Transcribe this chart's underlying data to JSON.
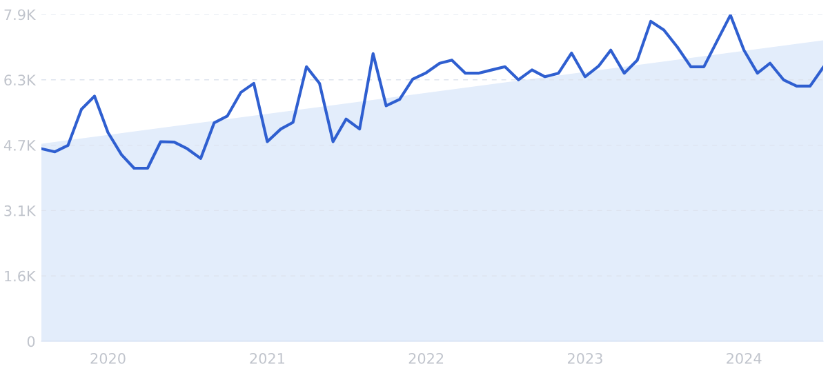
{
  "chart_data": {
    "type": "line",
    "x": [
      "2019-08",
      "2019-09",
      "2019-10",
      "2019-11",
      "2019-12",
      "2020-01",
      "2020-02",
      "2020-03",
      "2020-04",
      "2020-05",
      "2020-06",
      "2020-07",
      "2020-08",
      "2020-09",
      "2020-10",
      "2020-11",
      "2020-12",
      "2021-01",
      "2021-02",
      "2021-03",
      "2021-04",
      "2021-05",
      "2021-06",
      "2021-07",
      "2021-08",
      "2021-09",
      "2021-10",
      "2021-11",
      "2021-12",
      "2022-01",
      "2022-02",
      "2022-03",
      "2022-04",
      "2022-05",
      "2022-06",
      "2022-07",
      "2022-08",
      "2022-09",
      "2022-10",
      "2022-11",
      "2022-12",
      "2023-01",
      "2023-02",
      "2023-03",
      "2023-04",
      "2023-05",
      "2023-06",
      "2023-07",
      "2023-08",
      "2023-09",
      "2023-10",
      "2023-11",
      "2023-12",
      "2024-01",
      "2024-02",
      "2024-03",
      "2024-04",
      "2024-05",
      "2024-06",
      "2024-07"
    ],
    "series": [
      {
        "type": "area",
        "color": "#e3edfb",
        "x": [
          "2019-08",
          "2024-07"
        ],
        "values": [
          4760,
          7250
        ]
      },
      {
        "color": "#2f5fd0",
        "values": [
          4640,
          4565,
          4720,
          5590,
          5905,
          5030,
          4495,
          4170,
          4170,
          4810,
          4800,
          4640,
          4405,
          5265,
          5425,
          5995,
          6215,
          4810,
          5115,
          5275,
          6615,
          6215,
          4810,
          5355,
          5115,
          6930,
          5675,
          5830,
          6315,
          6470,
          6700,
          6775,
          6460,
          6460,
          6540,
          6615,
          6300,
          6540,
          6375,
          6460,
          6945,
          6375,
          6630,
          7015,
          6460,
          6775,
          7710,
          7500,
          7090,
          6615,
          6615,
          7250,
          7860,
          7015,
          6460,
          6700,
          6300,
          6150,
          6150,
          6600
        ]
      }
    ],
    "xlim": [
      "2019-08",
      "2024-07"
    ],
    "xticks": [
      {
        "value": "2020-01",
        "label": "2020"
      },
      {
        "value": "2021-01",
        "label": "2021"
      },
      {
        "value": "2022-01",
        "label": "2022"
      },
      {
        "value": "2023-01",
        "label": "2023"
      },
      {
        "value": "2024-01",
        "label": "2024"
      }
    ],
    "ylim": [
      0,
      7875
    ],
    "yticks": [
      0,
      {
        "value": 1575,
        "label": "1.6K"
      },
      {
        "value": 3150,
        "label": "3.1K"
      },
      {
        "value": 4725,
        "label": "4.7K"
      },
      {
        "value": 6300,
        "label": "6.3K"
      },
      {
        "value": 7875,
        "label": "7.9K"
      }
    ],
    "grid": "y",
    "line_style": "solid"
  }
}
